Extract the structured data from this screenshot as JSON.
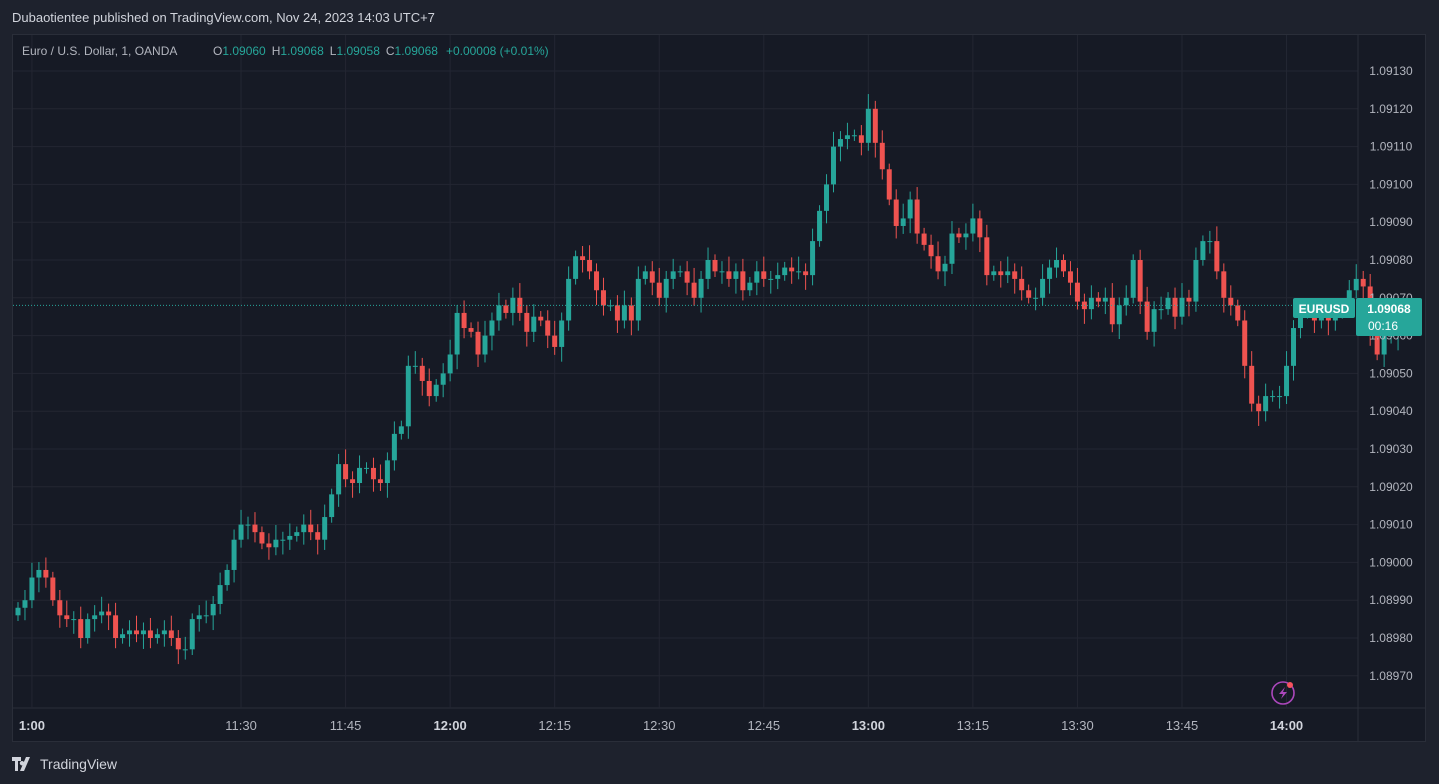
{
  "header": {
    "published_text": "Dubaotientee published on TradingView.com, Nov 24, 2023 14:03 UTC+7"
  },
  "legend": {
    "symbol": "Euro / U.S. Dollar, 1, OANDA",
    "o_label": "O",
    "o_value": "1.09060",
    "h_label": "H",
    "h_value": "1.09068",
    "l_label": "L",
    "l_value": "1.09058",
    "c_label": "C",
    "c_value": "1.09068",
    "change": "+0.00008 (+0.01%)"
  },
  "price_tag": {
    "symbol": "EURUSD",
    "price": "1.09068",
    "countdown": "00:16"
  },
  "footer": {
    "brand": "TradingView"
  },
  "colors": {
    "up": "#26a69a",
    "down": "#ef5350",
    "grid": "#232632",
    "axis_text": "#b2b5be",
    "background": "#161a25",
    "accent": "#ab47bc"
  },
  "icons": {
    "brand": "tradingview-logo-icon",
    "alert": "lightning-icon"
  },
  "chart_data": {
    "type": "candlestick",
    "title": "Euro / U.S. Dollar, 1, OANDA",
    "interval": "1 minute",
    "x_start": "10:58",
    "ylim": [
      1.08962,
      1.0914
    ],
    "yticks": [
      "1.09130",
      "1.09120",
      "1.09110",
      "1.09100",
      "1.09090",
      "1.09080",
      "1.09070",
      "1.09060",
      "1.09050",
      "1.09040",
      "1.09030",
      "1.09020",
      "1.09010",
      "1.09000",
      "1.08990",
      "1.08980",
      "1.08970"
    ],
    "xticks": [
      {
        "label": "1:00",
        "time": "11:00",
        "bold": true
      },
      {
        "label": "11:30",
        "time": "11:30",
        "bold": false
      },
      {
        "label": "11:45",
        "time": "11:45",
        "bold": false
      },
      {
        "label": "12:00",
        "time": "12:00",
        "bold": true
      },
      {
        "label": "12:15",
        "time": "12:15",
        "bold": false
      },
      {
        "label": "12:30",
        "time": "12:30",
        "bold": false
      },
      {
        "label": "12:45",
        "time": "12:45",
        "bold": false
      },
      {
        "label": "13:00",
        "time": "13:00",
        "bold": true
      },
      {
        "label": "13:15",
        "time": "13:15",
        "bold": false
      },
      {
        "label": "13:30",
        "time": "13:30",
        "bold": false
      },
      {
        "label": "13:45",
        "time": "13:45",
        "bold": false
      },
      {
        "label": "14:00",
        "time": "14:00",
        "bold": true
      }
    ],
    "last_price": 1.09068,
    "closes": [
      1.08988,
      1.0899,
      1.08996,
      1.08998,
      1.08996,
      1.0899,
      1.08986,
      1.08985,
      1.08985,
      1.0898,
      1.08985,
      1.08986,
      1.08987,
      1.08986,
      1.0898,
      1.08981,
      1.08982,
      1.08981,
      1.08982,
      1.0898,
      1.08981,
      1.08982,
      1.0898,
      1.08977,
      1.08977,
      1.08985,
      1.08986,
      1.08986,
      1.08989,
      1.08994,
      1.08998,
      1.09006,
      1.0901,
      1.0901,
      1.09008,
      1.09005,
      1.09004,
      1.09006,
      1.09006,
      1.09007,
      1.09008,
      1.0901,
      1.09008,
      1.09006,
      1.09012,
      1.09018,
      1.09026,
      1.09022,
      1.09021,
      1.09025,
      1.09025,
      1.09022,
      1.09021,
      1.09027,
      1.09034,
      1.09036,
      1.09052,
      1.09052,
      1.09048,
      1.09044,
      1.09047,
      1.0905,
      1.09055,
      1.09066,
      1.09062,
      1.09061,
      1.09055,
      1.0906,
      1.09064,
      1.09068,
      1.09066,
      1.0907,
      1.09066,
      1.09061,
      1.09065,
      1.09064,
      1.0906,
      1.09057,
      1.09064,
      1.09075,
      1.09081,
      1.0908,
      1.09077,
      1.09072,
      1.09068,
      1.09068,
      1.09064,
      1.09068,
      1.09064,
      1.09075,
      1.09077,
      1.09074,
      1.0907,
      1.09075,
      1.09077,
      1.09077,
      1.09074,
      1.0907,
      1.09075,
      1.0908,
      1.09077,
      1.09077,
      1.09075,
      1.09077,
      1.09072,
      1.09074,
      1.09077,
      1.09075,
      1.09075,
      1.09076,
      1.09078,
      1.09077,
      1.09077,
      1.09076,
      1.09085,
      1.09093,
      1.091,
      1.0911,
      1.09112,
      1.09113,
      1.09113,
      1.09111,
      1.0912,
      1.09111,
      1.09104,
      1.09096,
      1.09089,
      1.09091,
      1.09096,
      1.09087,
      1.09084,
      1.09081,
      1.09077,
      1.09079,
      1.09087,
      1.09086,
      1.09087,
      1.09091,
      1.09086,
      1.09076,
      1.09077,
      1.09076,
      1.09077,
      1.09075,
      1.09072,
      1.0907,
      1.0907,
      1.09075,
      1.09078,
      1.0908,
      1.09077,
      1.09074,
      1.09069,
      1.09067,
      1.0907,
      1.09069,
      1.0907,
      1.09063,
      1.09068,
      1.0907,
      1.0908,
      1.09069,
      1.09061,
      1.09067,
      1.09067,
      1.0907,
      1.09065,
      1.0907,
      1.09069,
      1.0908,
      1.09085,
      1.09085,
      1.09077,
      1.0907,
      1.09068,
      1.09064,
      1.09052,
      1.09042,
      1.0904,
      1.09044,
      1.09044,
      1.09044,
      1.09052,
      1.09062,
      1.09066,
      1.09066,
      1.09064,
      1.09065,
      1.09064,
      1.09066,
      1.09068,
      1.09072,
      1.09075,
      1.09073,
      1.0906,
      1.09055,
      1.0906,
      1.0906,
      1.09068
    ]
  }
}
